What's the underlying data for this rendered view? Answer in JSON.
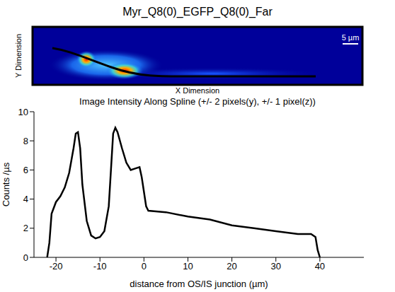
{
  "image": {
    "title": "Myr_Q8(0)_EGFP_Q8(0)_Far",
    "xlabel": "X Dimension",
    "ylabel": "Y Dimension",
    "scale_bar": "5 µm"
  },
  "chart_data": {
    "type": "line",
    "title": "Image Intensity Along Spline (+/- 2 pixels(y), +/- 1 pixel(z))",
    "xlabel": "distance from OS/IS junction (µm)",
    "ylabel": "Counts /µs",
    "color": "#000000",
    "x": [
      -22,
      -21.5,
      -21,
      -20,
      -19,
      -18,
      -17,
      -16,
      -15.5,
      -15,
      -14.5,
      -14,
      -13,
      -12,
      -11,
      -10,
      -9,
      -8,
      -7.5,
      -7,
      -6.5,
      -6,
      -5,
      -4,
      -3,
      -2,
      -1,
      -0.5,
      0,
      0.5,
      1,
      5,
      10,
      15,
      20,
      25,
      30,
      35,
      38,
      39,
      39.5,
      40
    ],
    "values": [
      0,
      1,
      3,
      3.8,
      4.2,
      4.8,
      5.8,
      7.5,
      8.5,
      8.6,
      7.5,
      5,
      2.5,
      1.5,
      1.3,
      1.4,
      1.8,
      3.5,
      6,
      8.5,
      8.9,
      8.6,
      7.5,
      6.5,
      6,
      6.1,
      6.2,
      5.5,
      4.5,
      3.5,
      3.2,
      3.1,
      2.8,
      2.6,
      2.2,
      2,
      1.8,
      1.6,
      1.6,
      1.4,
      0.5,
      0
    ],
    "xlim": [
      -25,
      50
    ],
    "ylim": [
      0,
      10
    ],
    "xticks": [
      -20,
      -10,
      0,
      10,
      20,
      30,
      40
    ],
    "yticks": [
      0,
      2,
      4,
      6,
      8,
      10
    ]
  }
}
